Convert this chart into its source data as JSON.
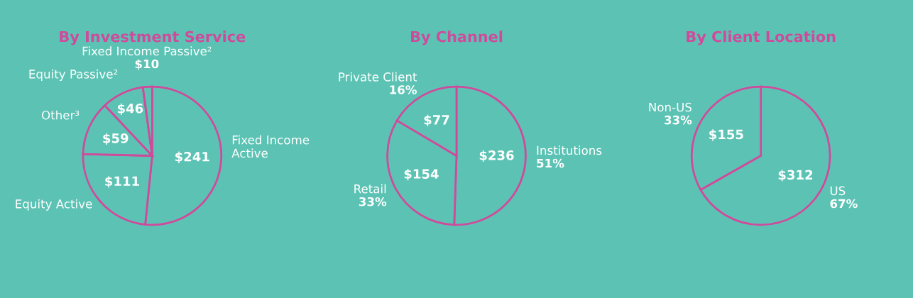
{
  "chart_data": [
    {
      "type": "pie",
      "title": "By Investment Service",
      "categories": [
        "Fixed Income Active",
        "Equity Active",
        "Other³",
        "Equity Passive²",
        "Fixed Income Passive²"
      ],
      "values": [
        241,
        111,
        59,
        46,
        10
      ],
      "value_labels": [
        "$241",
        "$111",
        "$59",
        "$46",
        "$10"
      ],
      "colors": [
        "#5cc3b4",
        "#5cc3b4",
        "#5cc3b4",
        "#5cc3b4",
        "#5cc3b4"
      ]
    },
    {
      "type": "pie",
      "title": "By Channel",
      "categories": [
        "Institutions",
        "Retail",
        "Private Client"
      ],
      "values": [
        236,
        154,
        77
      ],
      "value_labels": [
        "$236",
        "$154",
        "$77"
      ],
      "colors": [
        "#5cc3b4",
        "#5cc3b4",
        "#5cc3b4"
      ],
      "annotations": [
        {
          "text": "51%",
          "x": "Institutions"
        },
        {
          "text": "33%",
          "x": "Retail"
        },
        {
          "text": "16%",
          "x": "Private Client"
        }
      ]
    },
    {
      "type": "pie",
      "title": "By Client Location",
      "categories": [
        "US",
        "Non-US"
      ],
      "values": [
        312,
        155
      ],
      "value_labels": [
        "$312",
        "$155"
      ],
      "colors": [
        "#5cc3b4",
        "#5cc3b4"
      ],
      "annotations": [
        {
          "text": "67%",
          "x": "US"
        },
        {
          "text": "33%",
          "x": "Non-US"
        }
      ]
    }
  ]
}
